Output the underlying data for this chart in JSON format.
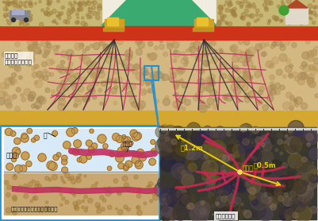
{
  "bg_color": "#e8e8e8",
  "upper_bg": "#f0ede0",
  "sand_color": "#d4b882",
  "road_color": "#cc3318",
  "road_shoulder_color": "#c8b888",
  "bottom_layer_color": "#d4a830",
  "embankment_color": "#3aaa70",
  "vein_color": "#c03060",
  "line_color": "#404040",
  "box_border_color": "#3090c8",
  "upper_panel_color": "#d8eaf8",
  "lower_panel_color": "#c8a870",
  "photo_bg_color": "#383830",
  "arrow_color": "#e8d000",
  "text_liquefaction": "液状化層\n（軟弱な砂地盤）",
  "text_water": "水",
  "text_soil": "土粒子",
  "text_vein": "改良脈",
  "text_compressed": "圧縮により締め固められた領域",
  "text_injection": "注入孔",
  "text_05m": "約0.5m",
  "text_12m": "約1.2m",
  "text_actual": "実際の改良脈"
}
